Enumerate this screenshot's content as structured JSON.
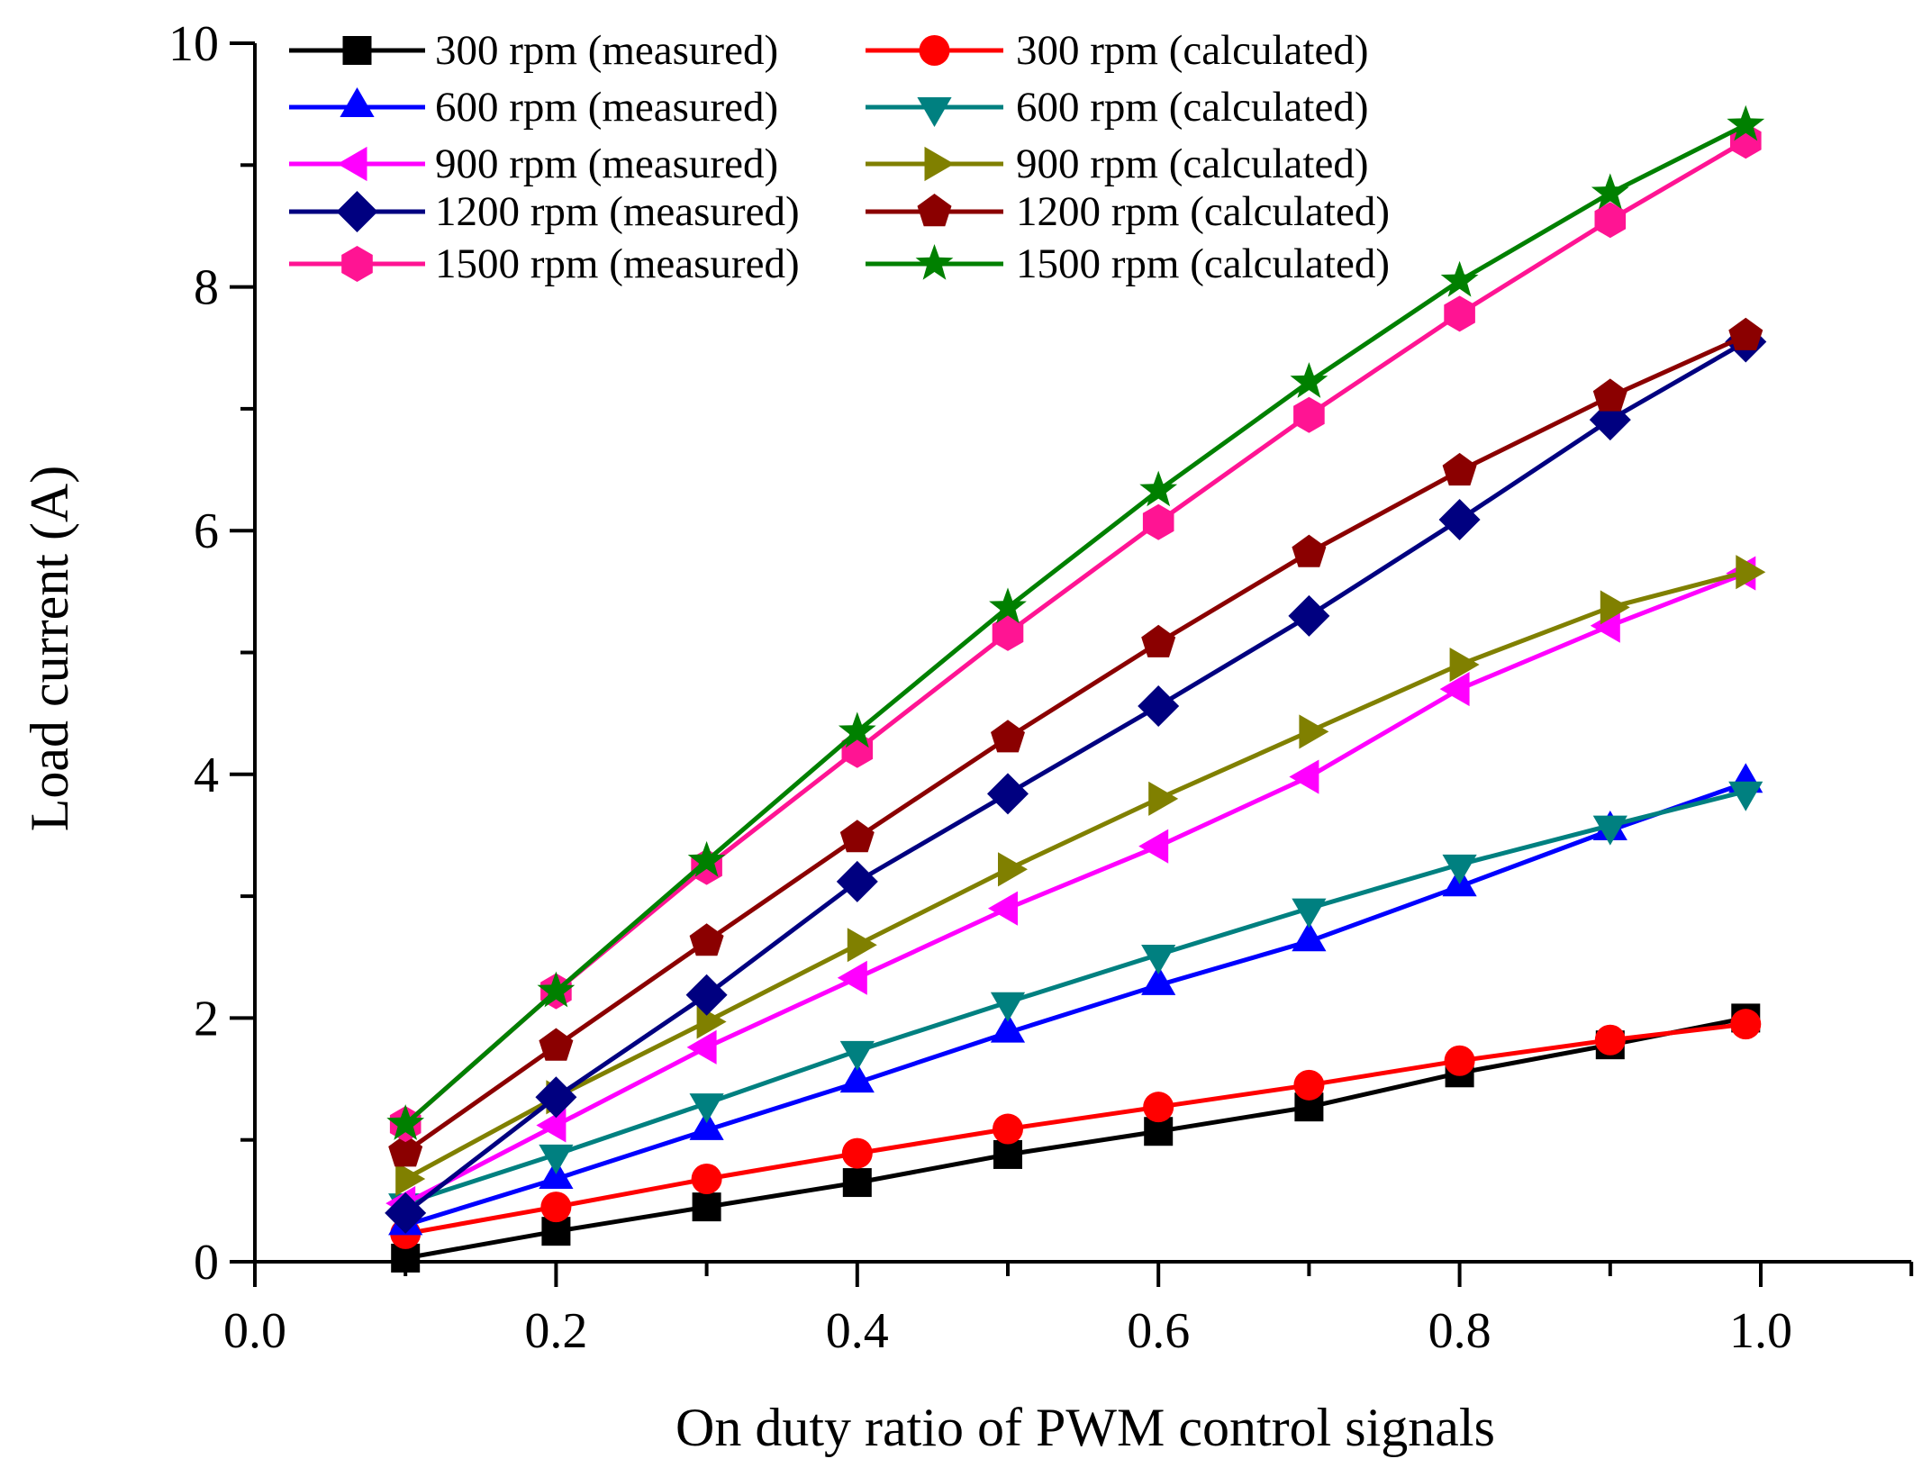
{
  "chart_data": {
    "type": "line",
    "title": "",
    "xlabel": "On duty ratio of PWM control signals",
    "ylabel": "Load current (A)",
    "xlim": [
      0.0,
      1.1
    ],
    "ylim": [
      0,
      10
    ],
    "grid": false,
    "legend_position": "top-left",
    "xticks": [
      "0.0",
      "0.2",
      "0.4",
      "0.6",
      "0.8",
      "1.0"
    ],
    "yticks": [
      "0",
      "2",
      "4",
      "6",
      "8",
      "10"
    ],
    "x": [
      0.1,
      0.2,
      0.3,
      0.4,
      0.5,
      0.6,
      0.7,
      0.8,
      0.9,
      0.99
    ],
    "series": [
      {
        "name": "300 rpm (measured)",
        "color": "#000000",
        "marker": "square",
        "values": [
          0.03,
          0.25,
          0.45,
          0.65,
          0.88,
          1.07,
          1.27,
          1.55,
          1.78,
          2.0
        ]
      },
      {
        "name": "300 rpm (calculated)",
        "color": "#ff0000",
        "marker": "circle",
        "values": [
          0.23,
          0.45,
          0.68,
          0.89,
          1.09,
          1.27,
          1.45,
          1.65,
          1.82,
          1.95
        ]
      },
      {
        "name": "600 rpm (measured)",
        "color": "#0000ff",
        "marker": "triangle-up",
        "values": [
          0.3,
          0.68,
          1.08,
          1.47,
          1.88,
          2.27,
          2.63,
          3.08,
          3.54,
          3.93
        ]
      },
      {
        "name": "600 rpm (calculated)",
        "color": "#008080",
        "marker": "triangle-down",
        "values": [
          0.48,
          0.88,
          1.3,
          1.73,
          2.13,
          2.52,
          2.9,
          3.26,
          3.58,
          3.86
        ]
      },
      {
        "name": "900 rpm (measured)",
        "color": "#ff00ff",
        "marker": "triangle-left",
        "values": [
          0.48,
          1.12,
          1.76,
          2.33,
          2.9,
          3.41,
          3.98,
          4.7,
          5.22,
          5.65
        ]
      },
      {
        "name": "900 rpm (calculated)",
        "color": "#808000",
        "marker": "triangle-right",
        "values": [
          0.68,
          1.35,
          1.97,
          2.6,
          3.22,
          3.8,
          4.35,
          4.9,
          5.37,
          5.66
        ]
      },
      {
        "name": "1200 rpm (measured)",
        "color": "#000080",
        "marker": "diamond",
        "values": [
          0.4,
          1.35,
          2.19,
          3.12,
          3.84,
          4.56,
          5.3,
          6.09,
          6.91,
          7.55
        ]
      },
      {
        "name": "1200 rpm (calculated)",
        "color": "#8b0000",
        "marker": "pentagon",
        "values": [
          0.9,
          1.77,
          2.63,
          3.48,
          4.3,
          5.08,
          5.82,
          6.49,
          7.1,
          7.6
        ]
      },
      {
        "name": "1500 rpm (measured)",
        "color": "#ff1493",
        "marker": "hexagon",
        "values": [
          1.13,
          2.22,
          3.24,
          4.2,
          5.16,
          6.07,
          6.95,
          7.78,
          8.55,
          9.2
        ]
      },
      {
        "name": "1500 rpm (calculated)",
        "color": "#008000",
        "marker": "star",
        "values": [
          1.13,
          2.22,
          3.29,
          4.35,
          5.37,
          6.33,
          7.22,
          8.05,
          8.77,
          9.33
        ]
      }
    ]
  }
}
